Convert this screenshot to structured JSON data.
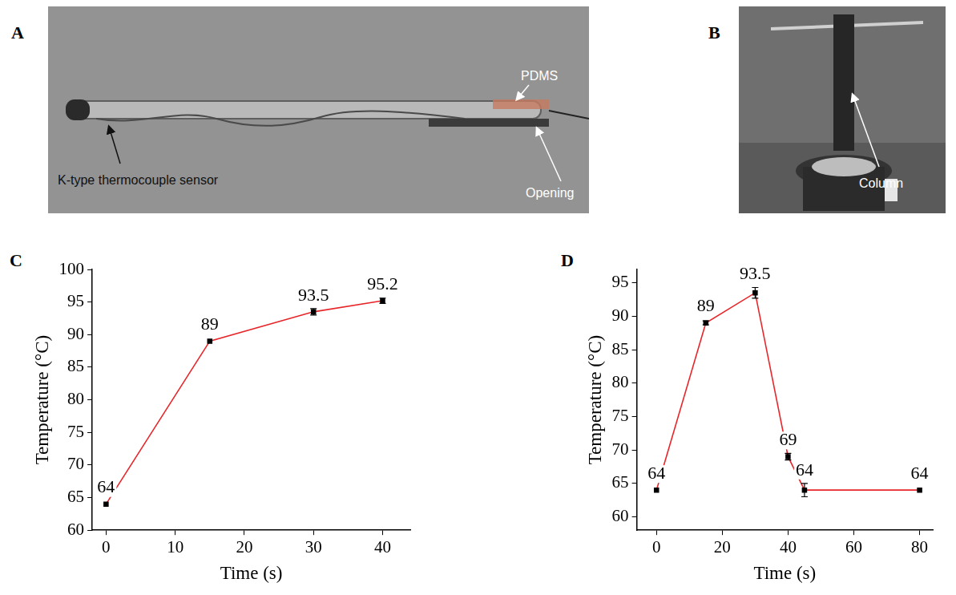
{
  "photos": [
    {
      "panel_label": "A",
      "labels": [
        "PDMS",
        "Opening",
        "K-type thermocouple sensor"
      ]
    },
    {
      "panel_label": "B",
      "labels": [
        "Column"
      ]
    }
  ],
  "chart_data": [
    {
      "panel_label": "C",
      "type": "line",
      "x_label": "Time (s)",
      "y_label": "Temperature (°C)",
      "x": [
        0,
        15,
        30,
        40
      ],
      "series": [
        {
          "color": "#e8262a",
          "marker": "square",
          "values": [
            64,
            89,
            93.5,
            95.2
          ],
          "errors": [
            0,
            0,
            0.5,
            0.4
          ]
        }
      ],
      "xlim": [
        -2,
        44
      ],
      "xticks": [
        0,
        10,
        20,
        30,
        40
      ],
      "ylim": [
        60,
        100
      ],
      "yticks": [
        60,
        65,
        70,
        75,
        80,
        85,
        90,
        95,
        100
      ],
      "grid": false,
      "data_labels": true
    },
    {
      "panel_label": "D",
      "type": "line",
      "x_label": "Time (s)",
      "y_label": "Temperature (°C)",
      "x": [
        0,
        15,
        30,
        40,
        45,
        80
      ],
      "series": [
        {
          "color": "#e8262a",
          "marker": "square",
          "values": [
            64,
            89,
            93.5,
            69,
            64,
            64
          ],
          "errors": [
            0,
            0.3,
            0.8,
            0.5,
            1.0,
            0
          ]
        }
      ],
      "xlim": [
        -6,
        84
      ],
      "xticks": [
        0,
        20,
        40,
        60,
        80
      ],
      "ylim": [
        58,
        97
      ],
      "yticks": [
        60,
        65,
        70,
        75,
        80,
        85,
        90,
        95
      ],
      "grid": false,
      "data_labels": true
    }
  ]
}
